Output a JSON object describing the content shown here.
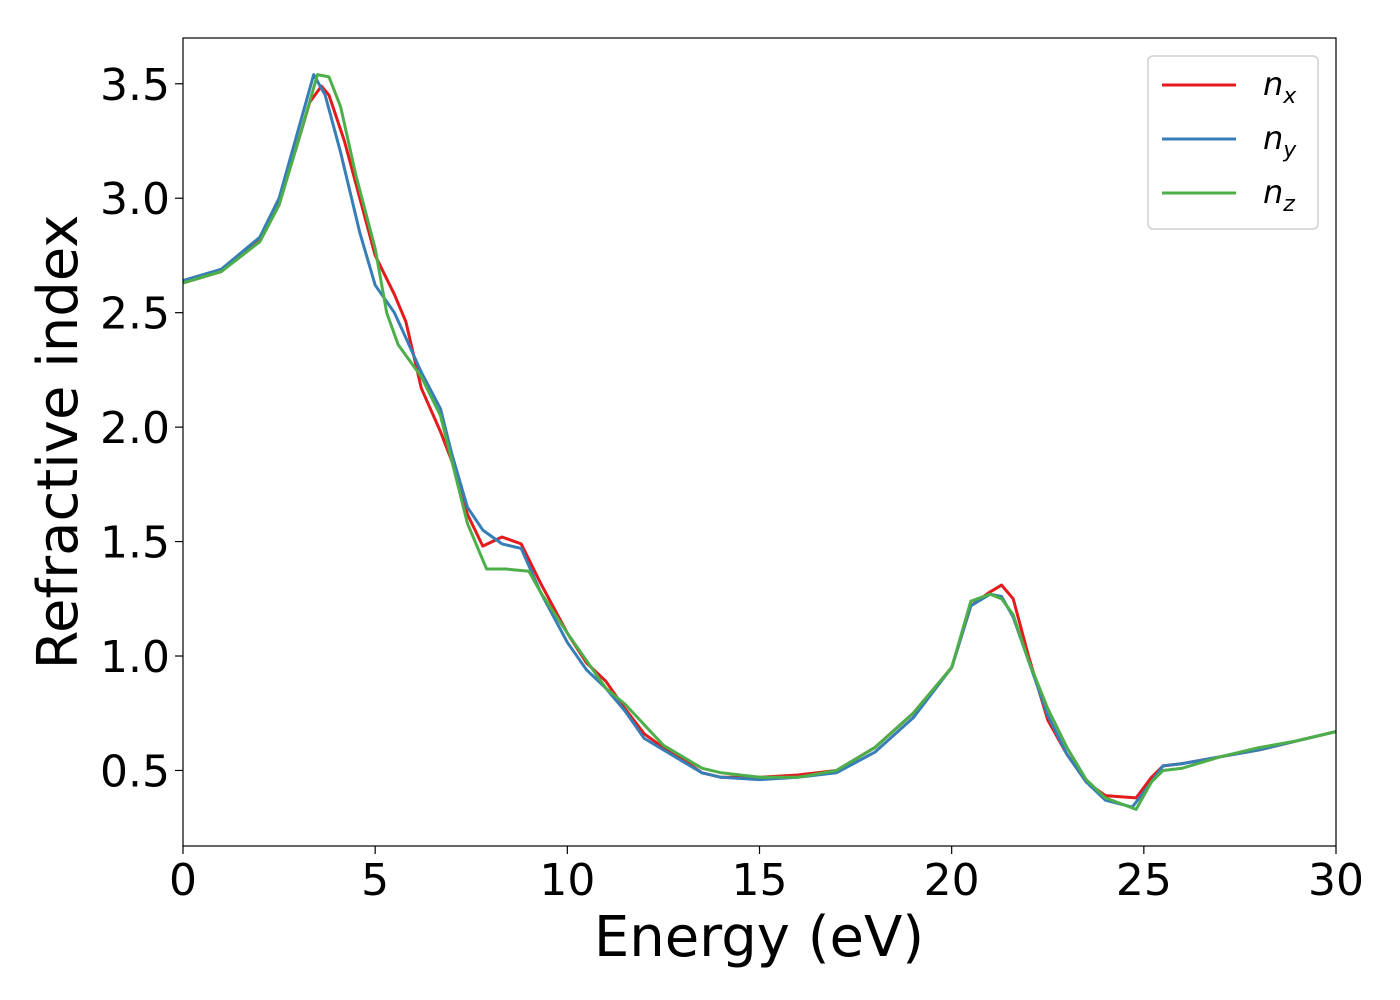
{
  "chart_data": {
    "type": "line",
    "title": "",
    "xlabel": "Energy (eV)",
    "ylabel": "Refractive index",
    "xlim": [
      0,
      30
    ],
    "ylim": [
      0.17,
      3.7
    ],
    "xticks": [
      0,
      5,
      10,
      15,
      20,
      25,
      30
    ],
    "yticks": [
      0.5,
      1.0,
      1.5,
      2.0,
      2.5,
      3.0,
      3.5
    ],
    "xtick_labels": [
      "0",
      "5",
      "10",
      "15",
      "20",
      "25",
      "30"
    ],
    "ytick_labels": [
      "0.5",
      "1.0",
      "1.5",
      "2.0",
      "2.5",
      "3.0",
      "3.5"
    ],
    "grid": false,
    "legend_position": "top-right",
    "series": [
      {
        "name": "n",
        "subscript": "x",
        "color": "#e41a1c",
        "x": [
          0,
          1,
          2,
          2.5,
          3,
          3.3,
          3.6,
          3.8,
          4.2,
          4.6,
          5,
          5.5,
          5.8,
          6.2,
          6.7,
          7,
          7.4,
          7.8,
          8.3,
          8.8,
          9.3,
          10,
          10.5,
          11,
          11.5,
          12,
          12.5,
          13,
          13.5,
          14,
          15,
          16,
          17,
          18,
          19,
          20,
          20.5,
          21,
          21.3,
          21.6,
          22,
          22.5,
          23,
          23.5,
          24,
          24.8,
          25.2,
          25.5,
          26,
          27,
          28,
          29,
          30
        ],
        "y": [
          2.63,
          2.68,
          2.82,
          2.98,
          3.25,
          3.42,
          3.49,
          3.45,
          3.25,
          3.0,
          2.75,
          2.58,
          2.46,
          2.17,
          1.98,
          1.85,
          1.62,
          1.48,
          1.52,
          1.49,
          1.32,
          1.1,
          0.97,
          0.89,
          0.77,
          0.66,
          0.6,
          0.55,
          0.49,
          0.47,
          0.47,
          0.48,
          0.5,
          0.6,
          0.75,
          0.95,
          1.22,
          1.28,
          1.31,
          1.25,
          1.0,
          0.72,
          0.57,
          0.45,
          0.39,
          0.38,
          0.47,
          0.52,
          0.53,
          0.56,
          0.59,
          0.63,
          0.67
        ]
      },
      {
        "name": "n",
        "subscript": "y",
        "color": "#377eb8",
        "x": [
          0,
          1,
          2,
          2.5,
          3,
          3.4,
          3.7,
          4.1,
          4.6,
          5,
          5.5,
          5.8,
          6.2,
          6.7,
          7,
          7.4,
          7.8,
          8.3,
          8.8,
          9.3,
          10,
          10.5,
          11,
          11.5,
          12,
          12.5,
          13,
          13.5,
          14,
          15,
          16,
          17,
          18,
          19,
          20,
          20.5,
          21,
          21.3,
          21.6,
          22,
          22.5,
          23,
          23.5,
          24,
          24.7,
          25.2,
          25.5,
          26,
          27,
          28,
          29,
          30
        ],
        "y": [
          2.64,
          2.69,
          2.83,
          3.0,
          3.3,
          3.54,
          3.45,
          3.2,
          2.85,
          2.62,
          2.5,
          2.39,
          2.24,
          2.08,
          1.88,
          1.65,
          1.55,
          1.49,
          1.47,
          1.28,
          1.06,
          0.94,
          0.86,
          0.76,
          0.64,
          0.59,
          0.54,
          0.49,
          0.47,
          0.46,
          0.47,
          0.49,
          0.58,
          0.73,
          0.95,
          1.22,
          1.27,
          1.26,
          1.17,
          0.98,
          0.74,
          0.57,
          0.45,
          0.37,
          0.34,
          0.45,
          0.52,
          0.53,
          0.56,
          0.59,
          0.63,
          0.67
        ]
      },
      {
        "name": "n",
        "subscript": "z",
        "color": "#4daf4a",
        "x": [
          0,
          1,
          2,
          2.5,
          3,
          3.5,
          3.8,
          4.1,
          4.5,
          5,
          5.3,
          5.6,
          6.2,
          6.7,
          7,
          7.4,
          7.9,
          8.4,
          9,
          9.3,
          10,
          10.5,
          11,
          11.5,
          12,
          12.5,
          13,
          13.5,
          14,
          15,
          16,
          17,
          18,
          19,
          20,
          20.5,
          21,
          21.3,
          21.6,
          22,
          22.5,
          23,
          23.5,
          24,
          24.8,
          25.2,
          25.5,
          26,
          27,
          28,
          29,
          30
        ],
        "y": [
          2.63,
          2.68,
          2.81,
          2.97,
          3.25,
          3.54,
          3.53,
          3.4,
          3.1,
          2.78,
          2.5,
          2.36,
          2.22,
          2.05,
          1.85,
          1.58,
          1.38,
          1.38,
          1.37,
          1.28,
          1.1,
          0.98,
          0.86,
          0.79,
          0.7,
          0.61,
          0.56,
          0.51,
          0.49,
          0.47,
          0.47,
          0.5,
          0.6,
          0.75,
          0.95,
          1.24,
          1.27,
          1.25,
          1.18,
          0.98,
          0.77,
          0.6,
          0.46,
          0.38,
          0.33,
          0.45,
          0.5,
          0.51,
          0.56,
          0.6,
          0.63,
          0.67
        ]
      }
    ]
  }
}
